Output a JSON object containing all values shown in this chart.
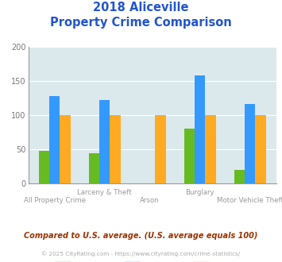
{
  "title_line1": "2018 Aliceville",
  "title_line2": "Property Crime Comparison",
  "categories": [
    "All Property Crime",
    "Larceny & Theft",
    "Arson",
    "Burglary",
    "Motor Vehicle Theft"
  ],
  "series": {
    "Aliceville": [
      48,
      44,
      0,
      80,
      20
    ],
    "Alabama": [
      128,
      122,
      0,
      158,
      117
    ],
    "National": [
      100,
      100,
      100,
      100,
      100
    ]
  },
  "colors": {
    "Aliceville": "#66bb22",
    "Alabama": "#3399ff",
    "National": "#ffaa22"
  },
  "ylim": [
    0,
    200
  ],
  "yticks": [
    0,
    50,
    100,
    150,
    200
  ],
  "bg_color": "#dce9ec",
  "bar_width": 0.18,
  "footnote1": "Compared to U.S. average. (U.S. average equals 100)",
  "footnote2": "© 2025 CityRating.com - https://www.cityrating.com/crime-statistics/",
  "title_color": "#2255cc",
  "footnote1_color": "#993300",
  "footnote2_color": "#aaaaaa"
}
